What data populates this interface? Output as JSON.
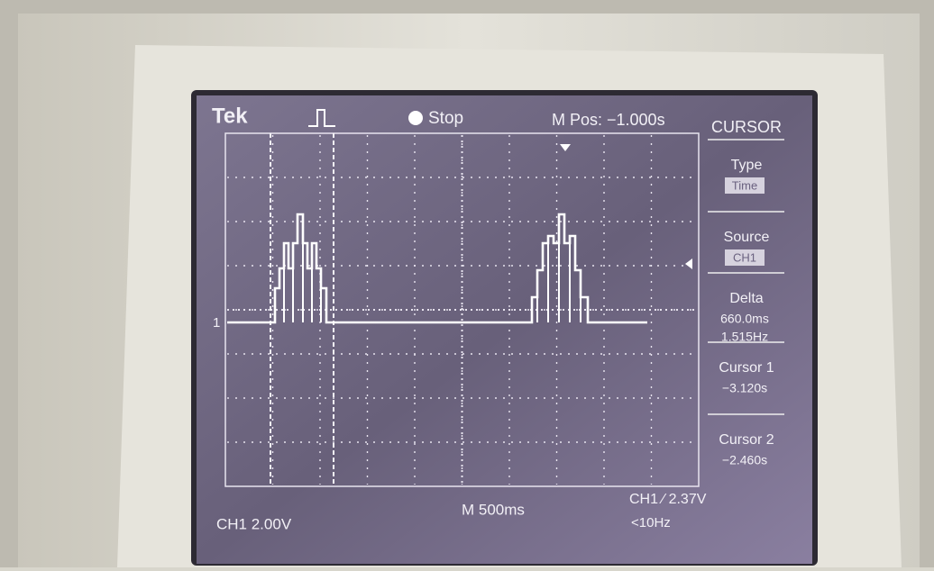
{
  "header": {
    "brand": "Tek",
    "status": "Stop",
    "position": "M Pos: −1.000s"
  },
  "menu": {
    "title": "CURSOR",
    "items": [
      {
        "label": "Type",
        "lines": [
          "Time"
        ]
      },
      {
        "label": "Source",
        "lines": [
          "CH1"
        ]
      },
      {
        "label": "Delta",
        "lines": [
          "660.0ms",
          "1.515Hz"
        ]
      },
      {
        "label": "Cursor 1",
        "lines": [
          "−3.120s"
        ]
      },
      {
        "label": "Cursor 2",
        "lines": [
          "−2.460s"
        ]
      }
    ]
  },
  "marker": "1",
  "footer": {
    "channel": "CH1  2.00V",
    "timebase": "M 500ms",
    "trigger": "CH1 ⁄ 2.37V",
    "frequency": "<10Hz"
  }
}
